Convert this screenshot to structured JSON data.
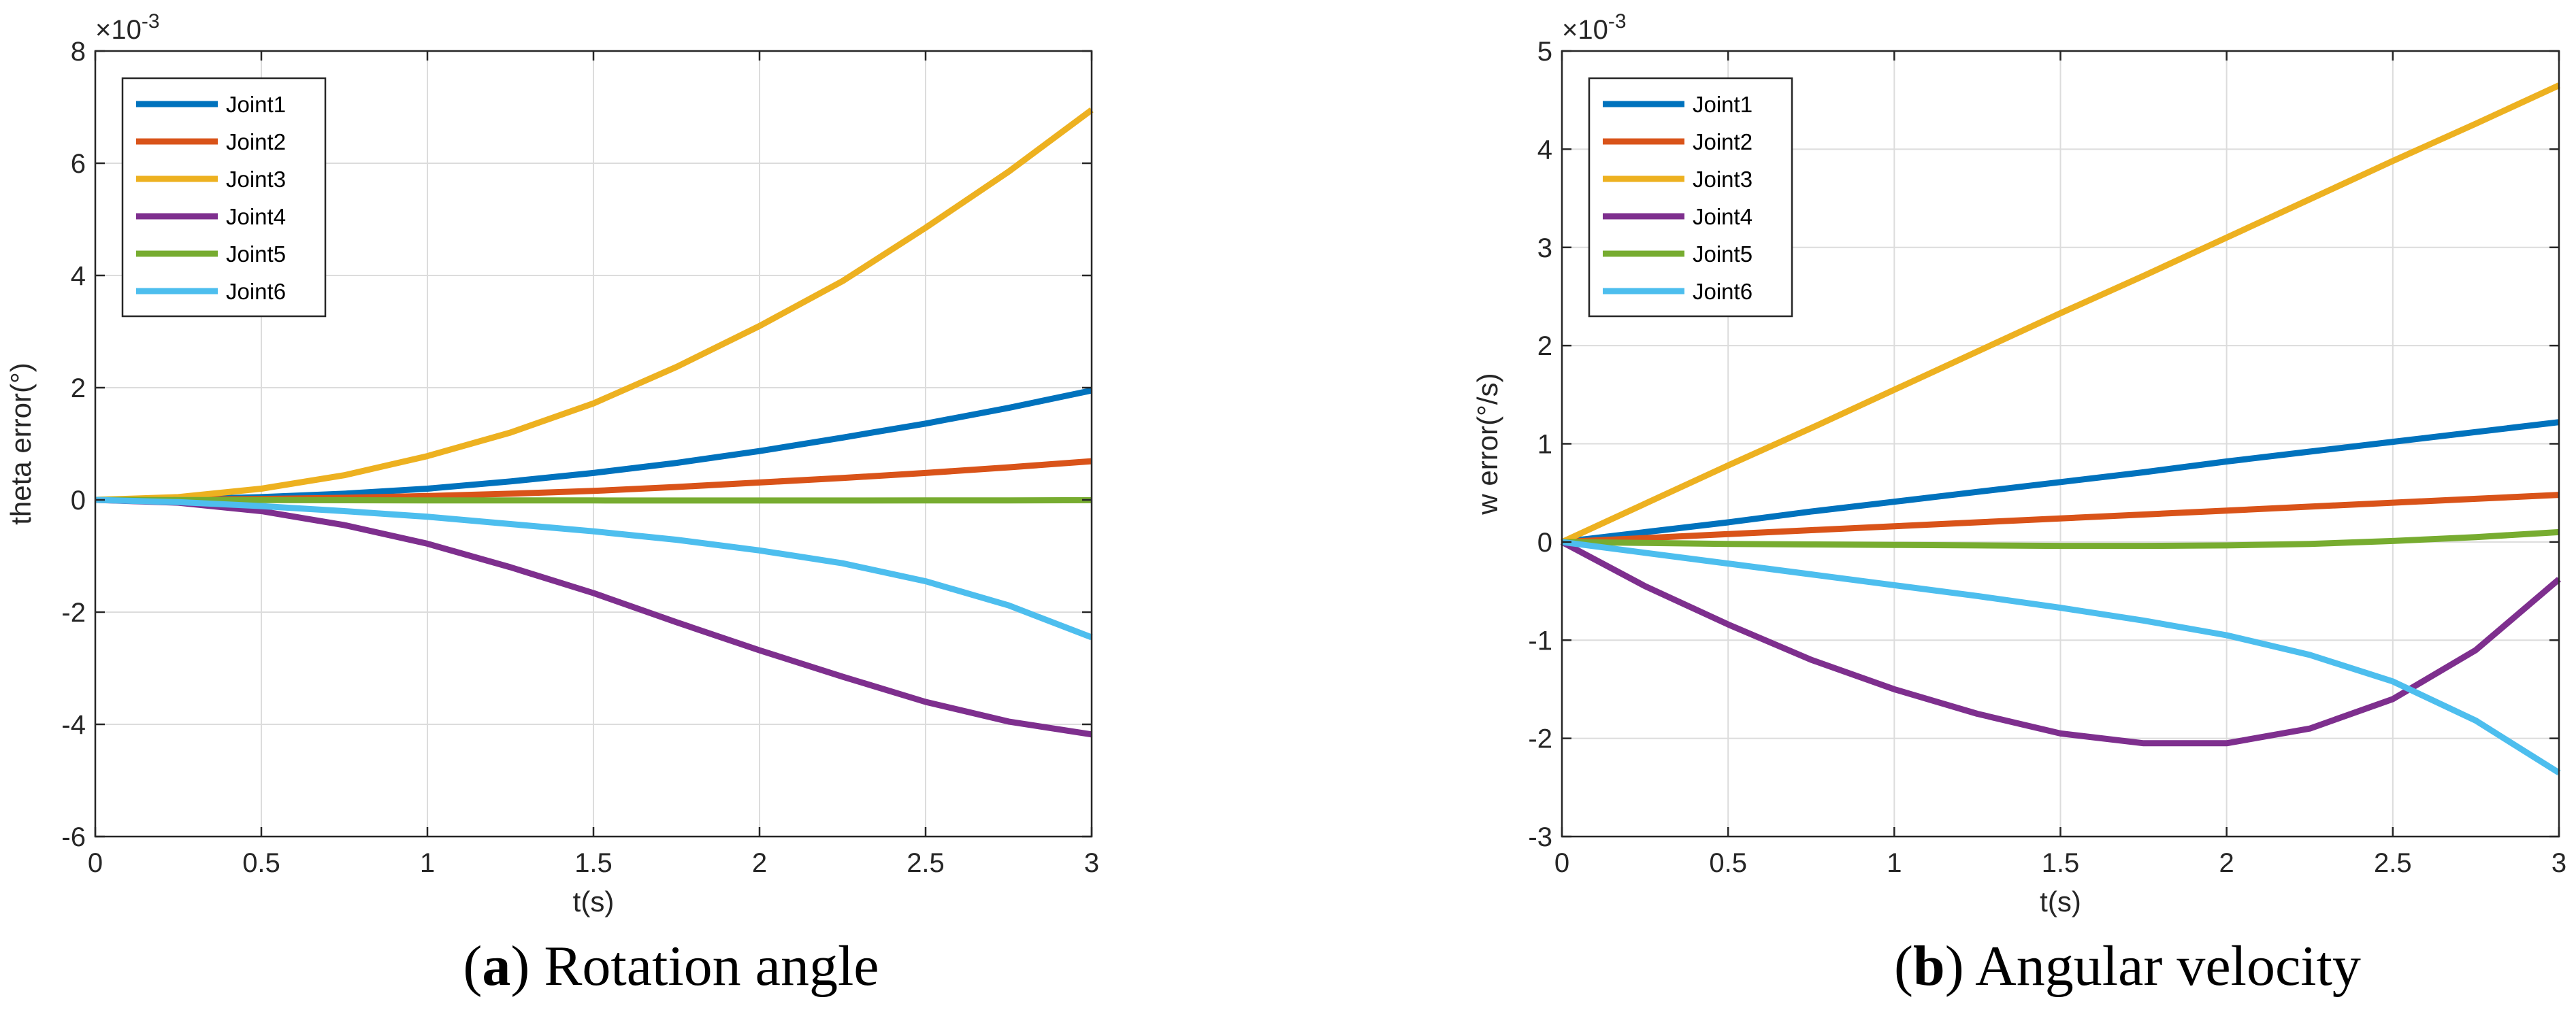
{
  "chart_data": [
    {
      "type": "line",
      "panel": "a",
      "caption_letter": "a",
      "caption_text": "Rotation angle",
      "xlabel": "t(s)",
      "ylabel": "theta error(°)",
      "exponent_label": "×10",
      "exponent_power": "-3",
      "xlim": [
        0,
        3
      ],
      "ylim": [
        -6,
        8
      ],
      "xticks": [
        0,
        0.5,
        1,
        1.5,
        2,
        2.5,
        3
      ],
      "xtick_labels": [
        "0",
        "0.5",
        "1",
        "1.5",
        "2",
        "2.5",
        "3"
      ],
      "yticks": [
        -6,
        -4,
        -2,
        0,
        2,
        4,
        6,
        8
      ],
      "ytick_labels": [
        "-6",
        "-4",
        "-2",
        "0",
        "2",
        "4",
        "6",
        "8"
      ],
      "grid": true,
      "legend_position": "top-left",
      "x": [
        0,
        0.25,
        0.5,
        0.75,
        1,
        1.25,
        1.5,
        1.75,
        2,
        2.25,
        2.5,
        2.75,
        3
      ],
      "series": [
        {
          "name": "Joint1",
          "color": "#0072BD",
          "values": [
            0,
            0.012,
            0.05,
            0.11,
            0.2,
            0.33,
            0.48,
            0.66,
            0.87,
            1.11,
            1.36,
            1.64,
            1.95
          ]
        },
        {
          "name": "Joint2",
          "color": "#D95319",
          "values": [
            0,
            0.005,
            0.017,
            0.038,
            0.069,
            0.11,
            0.16,
            0.23,
            0.31,
            0.39,
            0.48,
            0.58,
            0.69
          ]
        },
        {
          "name": "Joint3",
          "color": "#EDB120",
          "values": [
            0,
            0.05,
            0.2,
            0.44,
            0.78,
            1.2,
            1.72,
            2.37,
            3.1,
            3.9,
            4.85,
            5.85,
            6.95
          ]
        },
        {
          "name": "Joint4",
          "color": "#7E2F8E",
          "values": [
            0,
            -0.05,
            -0.2,
            -0.45,
            -0.78,
            -1.2,
            -1.66,
            -2.18,
            -2.68,
            -3.15,
            -3.6,
            -3.95,
            -4.18
          ]
        },
        {
          "name": "Joint5",
          "color": "#77AC30",
          "values": [
            0,
            -0.002,
            -0.004,
            -0.006,
            -0.008,
            -0.009,
            -0.01,
            -0.011,
            -0.011,
            -0.011,
            -0.01,
            -0.008,
            -0.005
          ]
        },
        {
          "name": "Joint6",
          "color": "#4DBEEE",
          "values": [
            0,
            -0.04,
            -0.11,
            -0.2,
            -0.3,
            -0.43,
            -0.56,
            -0.71,
            -0.9,
            -1.13,
            -1.45,
            -1.88,
            -2.45
          ]
        }
      ]
    },
    {
      "type": "line",
      "panel": "b",
      "caption_letter": "b",
      "caption_text": "Angular velocity",
      "xlabel": "t(s)",
      "ylabel": "w error(°/s)",
      "exponent_label": "×10",
      "exponent_power": "-3",
      "xlim": [
        0,
        3
      ],
      "ylim": [
        -3,
        5
      ],
      "xticks": [
        0,
        0.5,
        1,
        1.5,
        2,
        2.5,
        3
      ],
      "xtick_labels": [
        "0",
        "0.5",
        "1",
        "1.5",
        "2",
        "2.5",
        "3"
      ],
      "yticks": [
        -3,
        -2,
        -1,
        0,
        1,
        2,
        3,
        4,
        5
      ],
      "ytick_labels": [
        "-3",
        "-2",
        "-1",
        "0",
        "1",
        "2",
        "3",
        "4",
        "5"
      ],
      "grid": true,
      "legend_position": "top-left",
      "x": [
        0,
        0.25,
        0.5,
        0.75,
        1,
        1.25,
        1.5,
        1.75,
        2,
        2.25,
        2.5,
        2.75,
        3
      ],
      "series": [
        {
          "name": "Joint1",
          "color": "#0072BD",
          "values": [
            0,
            0.1,
            0.2,
            0.31,
            0.41,
            0.51,
            0.61,
            0.71,
            0.82,
            0.92,
            1.02,
            1.12,
            1.22
          ]
        },
        {
          "name": "Joint2",
          "color": "#D95319",
          "values": [
            0,
            0.04,
            0.08,
            0.12,
            0.16,
            0.2,
            0.24,
            0.28,
            0.32,
            0.36,
            0.4,
            0.44,
            0.48
          ]
        },
        {
          "name": "Joint3",
          "color": "#EDB120",
          "values": [
            0,
            0.39,
            0.78,
            1.16,
            1.55,
            1.94,
            2.33,
            2.71,
            3.1,
            3.49,
            3.88,
            4.26,
            4.65
          ]
        },
        {
          "name": "Joint4",
          "color": "#7E2F8E",
          "values": [
            0,
            -0.45,
            -0.84,
            -1.2,
            -1.5,
            -1.75,
            -1.95,
            -2.05,
            -2.05,
            -1.9,
            -1.6,
            -1.1,
            -0.38
          ]
        },
        {
          "name": "Joint5",
          "color": "#77AC30",
          "values": [
            0,
            -0.01,
            -0.02,
            -0.025,
            -0.03,
            -0.035,
            -0.04,
            -0.04,
            -0.035,
            -0.02,
            0.01,
            0.05,
            0.1
          ]
        },
        {
          "name": "Joint6",
          "color": "#4DBEEE",
          "values": [
            0,
            -0.11,
            -0.22,
            -0.33,
            -0.44,
            -0.55,
            -0.67,
            -0.8,
            -0.95,
            -1.15,
            -1.42,
            -1.82,
            -2.35
          ]
        }
      ]
    }
  ]
}
